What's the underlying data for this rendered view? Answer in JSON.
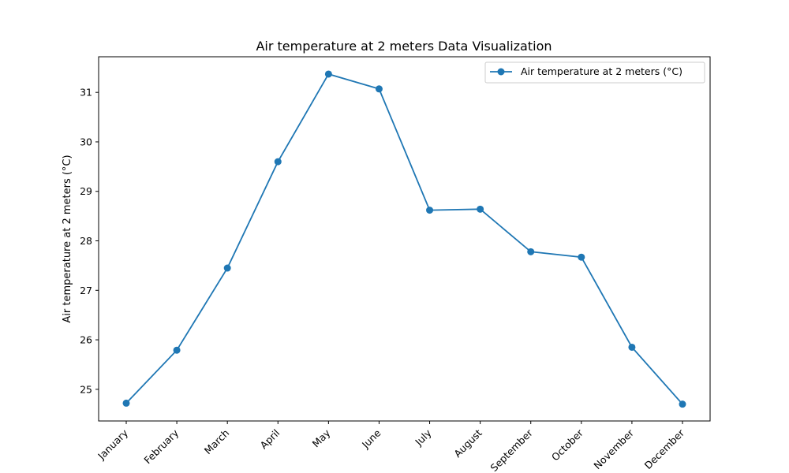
{
  "chart_data": {
    "type": "line",
    "title": "Air temperature at 2 meters Data Visualization",
    "xlabel": "",
    "ylabel": "Air temperature at 2 meters (°C)",
    "categories": [
      "January",
      "February",
      "March",
      "April",
      "May",
      "June",
      "July",
      "August",
      "September",
      "October",
      "November",
      "December"
    ],
    "series": [
      {
        "name": "Air temperature at 2 meters (°C)",
        "values": [
          24.72,
          25.79,
          27.45,
          29.6,
          31.37,
          31.07,
          28.62,
          28.64,
          27.78,
          27.67,
          25.85,
          24.7
        ],
        "color": "#1f77b4"
      }
    ],
    "ylim": [
      24.36,
      31.72
    ],
    "yticks": [
      25,
      26,
      27,
      28,
      29,
      30,
      31
    ],
    "grid": false,
    "legend_position": "upper-right"
  }
}
